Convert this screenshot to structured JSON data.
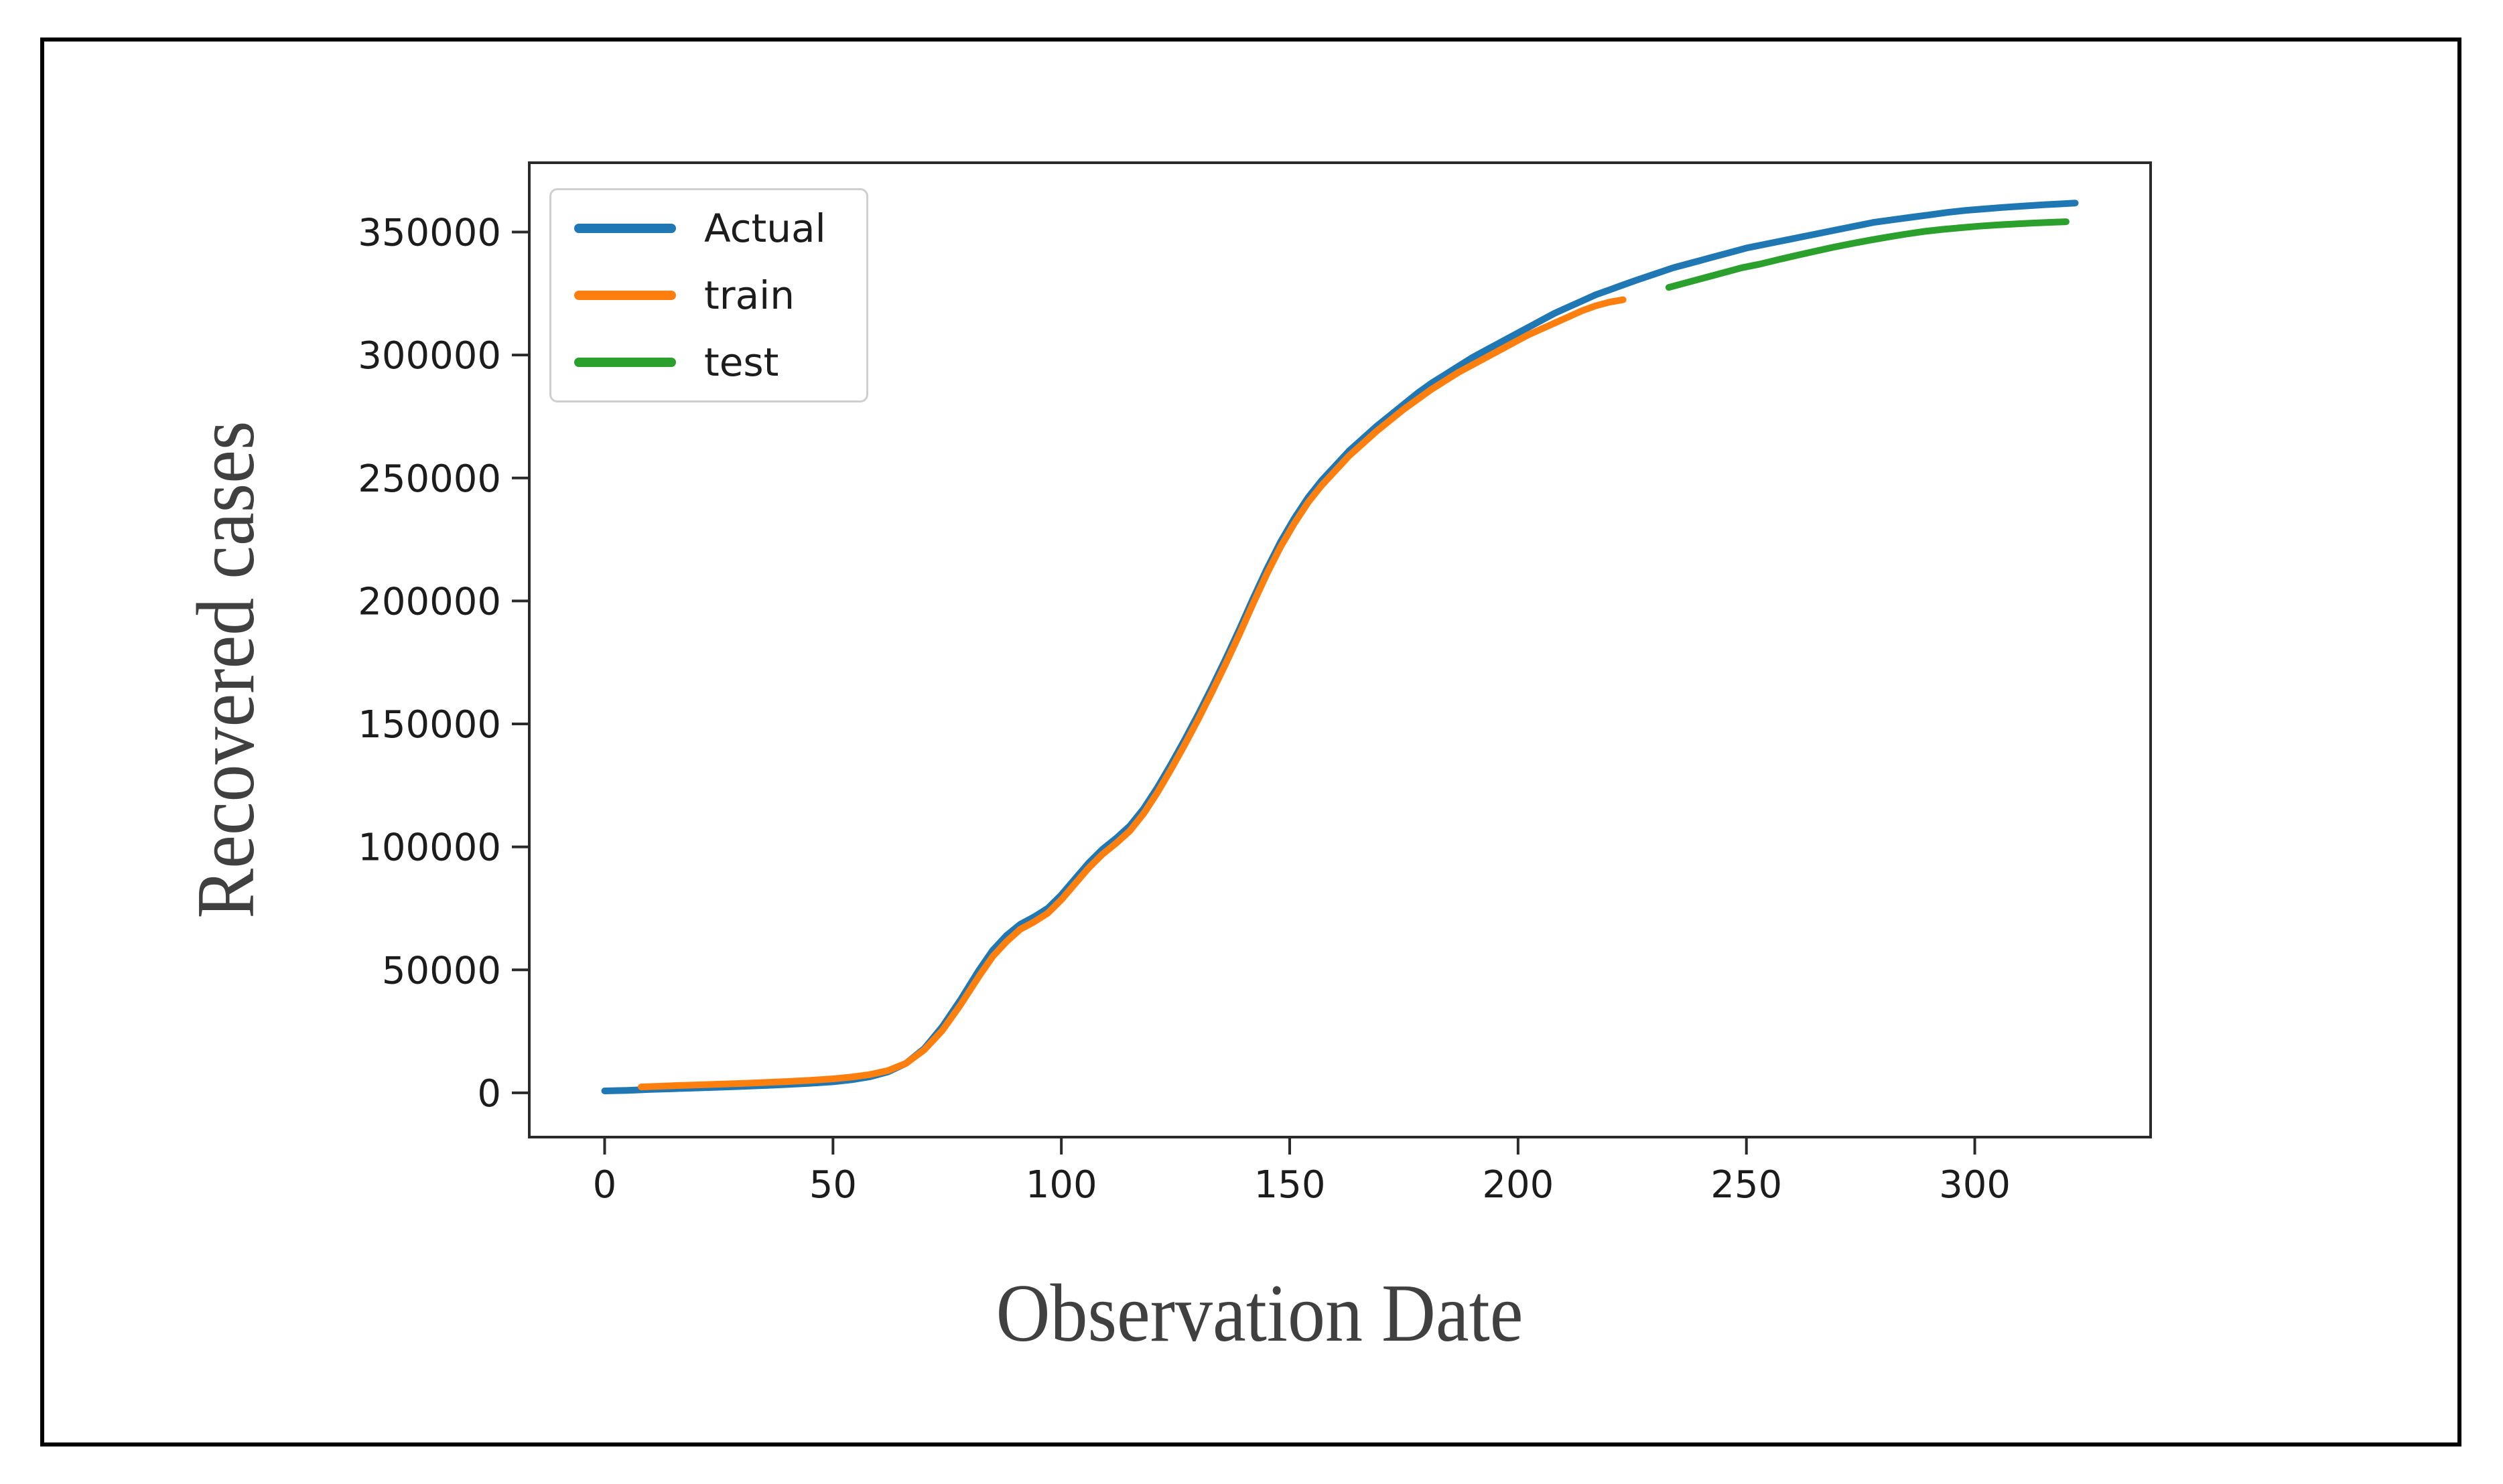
{
  "figure": {
    "background": "#ffffff",
    "outer_border_color": "#000000"
  },
  "chart_data": {
    "type": "line",
    "title": "",
    "xlabel": "Observation Date",
    "ylabel": "Recovered cases",
    "grid": false,
    "xlim": [
      -16.5,
      338.5
    ],
    "ylim": [
      -18000,
      378200
    ],
    "x_ticks": [
      0,
      50,
      100,
      150,
      200,
      250,
      300
    ],
    "y_ticks": [
      0,
      50000,
      100000,
      150000,
      200000,
      250000,
      300000,
      350000
    ],
    "legend": {
      "position": "upper-left",
      "entries": [
        {
          "label": "Actual",
          "color": "#1f77b4"
        },
        {
          "label": "train",
          "color": "#ff7f0e"
        },
        {
          "label": "test",
          "color": "#2ca02c"
        }
      ]
    },
    "series": [
      {
        "name": "Actual",
        "color": "#1f77b4",
        "points": [
          [
            0,
            800
          ],
          [
            5,
            1000
          ],
          [
            10,
            1400
          ],
          [
            15,
            1700
          ],
          [
            20,
            2000
          ],
          [
            25,
            2300
          ],
          [
            30,
            2600
          ],
          [
            35,
            3000
          ],
          [
            40,
            3400
          ],
          [
            45,
            3900
          ],
          [
            50,
            4500
          ],
          [
            54,
            5300
          ],
          [
            58,
            6500
          ],
          [
            62,
            8500
          ],
          [
            66,
            12000
          ],
          [
            70,
            18000
          ],
          [
            74,
            27000
          ],
          [
            78,
            38000
          ],
          [
            82,
            50000
          ],
          [
            85,
            58000
          ],
          [
            88,
            64000
          ],
          [
            91,
            68500
          ],
          [
            94,
            71500
          ],
          [
            97,
            75000
          ],
          [
            100,
            80500
          ],
          [
            103,
            87000
          ],
          [
            106,
            93500
          ],
          [
            109,
            99000
          ],
          [
            112,
            103500
          ],
          [
            115,
            108500
          ],
          [
            118,
            115500
          ],
          [
            121,
            124000
          ],
          [
            124,
            133500
          ],
          [
            127,
            143500
          ],
          [
            130,
            154000
          ],
          [
            133,
            165000
          ],
          [
            136,
            176500
          ],
          [
            139,
            188500
          ],
          [
            142,
            201000
          ],
          [
            145,
            213000
          ],
          [
            148,
            224000
          ],
          [
            151,
            233500
          ],
          [
            154,
            242000
          ],
          [
            157,
            249000
          ],
          [
            160,
            255000
          ],
          [
            163,
            261000
          ],
          [
            166,
            266000
          ],
          [
            169,
            271000
          ],
          [
            172,
            275500
          ],
          [
            175,
            280000
          ],
          [
            178,
            284500
          ],
          [
            181,
            288500
          ],
          [
            184,
            292000
          ],
          [
            187,
            295500
          ],
          [
            190,
            299000
          ],
          [
            193,
            302000
          ],
          [
            196,
            305000
          ],
          [
            199,
            308000
          ],
          [
            202,
            311000
          ],
          [
            205,
            314000
          ],
          [
            208,
            317000
          ],
          [
            211,
            319500
          ],
          [
            214,
            322000
          ],
          [
            217,
            324500
          ],
          [
            220,
            326500
          ],
          [
            223,
            328500
          ],
          [
            226,
            330500
          ],
          [
            230,
            333000
          ],
          [
            234,
            335500
          ],
          [
            238,
            337500
          ],
          [
            242,
            339500
          ],
          [
            246,
            341500
          ],
          [
            250,
            343500
          ],
          [
            254,
            345000
          ],
          [
            258,
            346500
          ],
          [
            262,
            348000
          ],
          [
            266,
            349500
          ],
          [
            270,
            351000
          ],
          [
            274,
            352500
          ],
          [
            278,
            354000
          ],
          [
            282,
            355000
          ],
          [
            286,
            356000
          ],
          [
            290,
            357000
          ],
          [
            294,
            358000
          ],
          [
            298,
            358800
          ],
          [
            302,
            359400
          ],
          [
            306,
            360000
          ],
          [
            310,
            360500
          ],
          [
            314,
            361000
          ],
          [
            318,
            361400
          ],
          [
            322,
            361800
          ]
        ]
      },
      {
        "name": "train",
        "color": "#ff7f0e",
        "points": [
          [
            8,
            2400
          ],
          [
            15,
            2900
          ],
          [
            20,
            3200
          ],
          [
            25,
            3500
          ],
          [
            30,
            3800
          ],
          [
            35,
            4200
          ],
          [
            40,
            4600
          ],
          [
            45,
            5100
          ],
          [
            50,
            5700
          ],
          [
            54,
            6400
          ],
          [
            58,
            7400
          ],
          [
            62,
            9000
          ],
          [
            66,
            12000
          ],
          [
            70,
            17500
          ],
          [
            74,
            25500
          ],
          [
            78,
            36000
          ],
          [
            82,
            47500
          ],
          [
            85,
            55500
          ],
          [
            88,
            61500
          ],
          [
            91,
            66500
          ],
          [
            94,
            69500
          ],
          [
            97,
            73000
          ],
          [
            100,
            78500
          ],
          [
            103,
            85000
          ],
          [
            106,
            91500
          ],
          [
            109,
            97000
          ],
          [
            112,
            101500
          ],
          [
            115,
            106500
          ],
          [
            118,
            113500
          ],
          [
            121,
            122000
          ],
          [
            124,
            131500
          ],
          [
            127,
            141500
          ],
          [
            130,
            152000
          ],
          [
            133,
            163000
          ],
          [
            136,
            174500
          ],
          [
            139,
            186500
          ],
          [
            142,
            199000
          ],
          [
            145,
            211000
          ],
          [
            148,
            222000
          ],
          [
            151,
            231500
          ],
          [
            154,
            240000
          ],
          [
            157,
            247000
          ],
          [
            160,
            253000
          ],
          [
            163,
            259000
          ],
          [
            166,
            264000
          ],
          [
            169,
            269000
          ],
          [
            172,
            273500
          ],
          [
            175,
            278000
          ],
          [
            178,
            282000
          ],
          [
            181,
            286000
          ],
          [
            184,
            289500
          ],
          [
            187,
            293000
          ],
          [
            190,
            296000
          ],
          [
            193,
            299000
          ],
          [
            196,
            302000
          ],
          [
            199,
            305000
          ],
          [
            202,
            308000
          ],
          [
            205,
            310500
          ],
          [
            208,
            313000
          ],
          [
            211,
            315500
          ],
          [
            214,
            318000
          ],
          [
            217,
            320000
          ],
          [
            220,
            321500
          ],
          [
            223,
            322500
          ]
        ]
      },
      {
        "name": "test",
        "color": "#2ca02c",
        "points": [
          [
            233,
            327500
          ],
          [
            237,
            329500
          ],
          [
            241,
            331500
          ],
          [
            245,
            333500
          ],
          [
            249,
            335500
          ],
          [
            253,
            337000
          ],
          [
            257,
            338800
          ],
          [
            261,
            340500
          ],
          [
            265,
            342200
          ],
          [
            269,
            343800
          ],
          [
            273,
            345300
          ],
          [
            277,
            346700
          ],
          [
            281,
            348000
          ],
          [
            285,
            349200
          ],
          [
            289,
            350300
          ],
          [
            293,
            351100
          ],
          [
            297,
            351800
          ],
          [
            301,
            352400
          ],
          [
            305,
            352900
          ],
          [
            309,
            353300
          ],
          [
            313,
            353700
          ],
          [
            317,
            354000
          ],
          [
            320,
            354200
          ]
        ]
      }
    ]
  }
}
